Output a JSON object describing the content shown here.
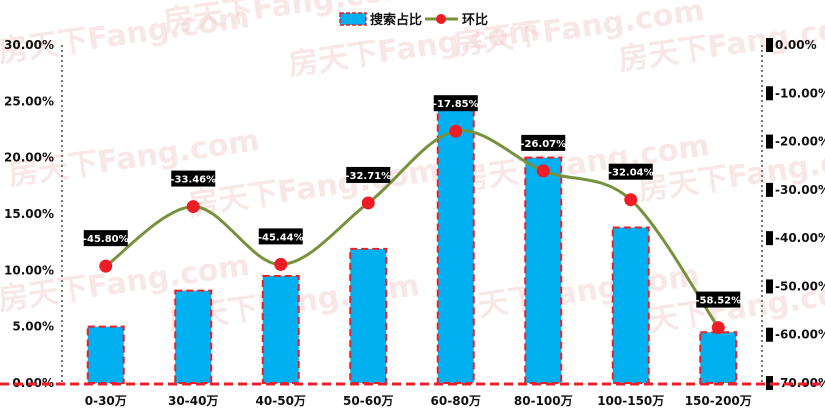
{
  "watermark": "房天下Fang.com",
  "chart_data": {
    "type": "bar",
    "categories": [
      "0-30万",
      "30-40万",
      "40-50万",
      "50-60万",
      "60-80万",
      "80-100万",
      "100-150万",
      "150-200万"
    ],
    "series": [
      {
        "name": "搜索占比",
        "type": "bar",
        "axis": "left",
        "values": [
          5.0,
          8.2,
          9.5,
          11.9,
          25.0,
          20.0,
          13.8,
          4.5
        ],
        "color": "#00b0f0",
        "border_color": "#e8202a"
      },
      {
        "name": "环比",
        "type": "line",
        "axis": "right",
        "values": [
          -45.8,
          -33.46,
          -45.44,
          -32.71,
          -17.85,
          -26.07,
          -32.04,
          -58.52
        ],
        "labels": [
          "-45.80%",
          "-33.46%",
          "-45.44%",
          "-32.71%",
          "-17.85%",
          "-26.07%",
          "-32.04%",
          "-58.52%"
        ],
        "color": "#76923c",
        "marker_color": "#ee1c24"
      }
    ],
    "y_left": {
      "range": [
        0,
        30
      ],
      "ticks": [
        0,
        5,
        10,
        15,
        20,
        25,
        30
      ],
      "tick_labels": [
        "0.00%",
        "5.00%",
        "10.00%",
        "15.00%",
        "20.00%",
        "25.00%",
        "30.00%"
      ]
    },
    "y_right": {
      "range": [
        -70,
        0
      ],
      "ticks": [
        0,
        -10,
        -20,
        -30,
        -40,
        -50,
        -60,
        -70
      ],
      "tick_labels": [
        "0.00%",
        "-10.00%",
        "-20.00%",
        "-30.00%",
        "-40.00%",
        "-50.00%",
        "-60.00%",
        "-70.00%"
      ]
    },
    "legend_position": "top",
    "grid": false
  }
}
